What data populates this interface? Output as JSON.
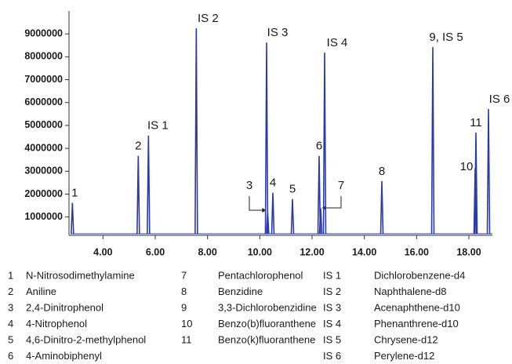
{
  "chart_data": {
    "type": "chromatogram",
    "xlim": [
      2.7,
      18.9
    ],
    "xticks": [
      {
        "value": 4,
        "label": "4.00"
      },
      {
        "value": 6,
        "label": "6.00"
      },
      {
        "value": 8,
        "label": "8.00"
      },
      {
        "value": 10,
        "label": "10.00"
      },
      {
        "value": 12,
        "label": "12.00"
      },
      {
        "value": 14,
        "label": "14.00"
      },
      {
        "value": 16,
        "label": "16.00"
      },
      {
        "value": 18,
        "label": "18.00"
      }
    ],
    "ylim": [
      200000,
      10000000
    ],
    "yticks": [
      1000000,
      2000000,
      3000000,
      4000000,
      5000000,
      6000000,
      7000000,
      8000000,
      9000000
    ],
    "color": "#2a3aa8",
    "peaks": {
      "x": [
        2.83,
        5.35,
        5.74,
        7.57,
        10.3,
        10.26,
        10.5,
        11.25,
        12.27,
        12.33,
        12.48,
        14.67,
        16.62,
        18.24,
        18.27,
        18.75
      ],
      "values": [
        1620000,
        3670000,
        4560000,
        9240000,
        1200000,
        8620000,
        2060000,
        1790000,
        3670000,
        1380000,
        8180000,
        2570000,
        8420000,
        3120000,
        4690000,
        5720000
      ],
      "labels": [
        "1",
        "2",
        "IS 1",
        "IS 2",
        "3",
        "IS 3",
        "4",
        "5",
        "6",
        "7",
        "IS 4",
        "8",
        "9, IS 5",
        "10",
        "11",
        "IS 6"
      ],
      "label_colors": [
        "#1a1a1a",
        "#1a1a1a",
        "#1a1a1a",
        "#1a1a1a",
        "#c0282c",
        "#1a1a1a",
        "#c0282c",
        "#c0282c",
        "#c0282c",
        "#c0282c",
        "#1a1a1a",
        "#c0282c",
        "#1a1a1a",
        "#1a1a1a",
        "#1a1a1a",
        "#1a1a1a"
      ]
    },
    "legend": [
      [
        {
          "key": "1",
          "name": "N-Nitrosodimethylamine"
        },
        {
          "key": "2",
          "name": "Aniline"
        },
        {
          "key": "3",
          "name": "2,4-Dinitrophenol"
        },
        {
          "key": "4",
          "name": "4-Nitrophenol"
        },
        {
          "key": "5",
          "name": "4,6-Dinitro-2-methylphenol"
        },
        {
          "key": "6",
          "name": "4-Aminobiphenyl"
        }
      ],
      [
        {
          "key": "7",
          "name": "Pentachlorophenol"
        },
        {
          "key": "8",
          "name": "Benzidine"
        },
        {
          "key": "9",
          "name": "3,3-Dichlorobenzidine"
        },
        {
          "key": "10",
          "name": "Benzo(b)fluoranthene"
        },
        {
          "key": "11",
          "name": "Benzo(k)fluoranthene"
        }
      ],
      [
        {
          "key": "IS 1",
          "name": "Dichlorobenzene-d4"
        },
        {
          "key": "IS 2",
          "name": "Naphthalene-d8"
        },
        {
          "key": "IS 3",
          "name": "Acenaphthene-d10"
        },
        {
          "key": "IS 4",
          "name": "Phenanthrene-d10"
        },
        {
          "key": "IS 5",
          "name": "Chrysene-d12"
        },
        {
          "key": "IS 6",
          "name": "Perylene-d12"
        }
      ]
    ]
  }
}
